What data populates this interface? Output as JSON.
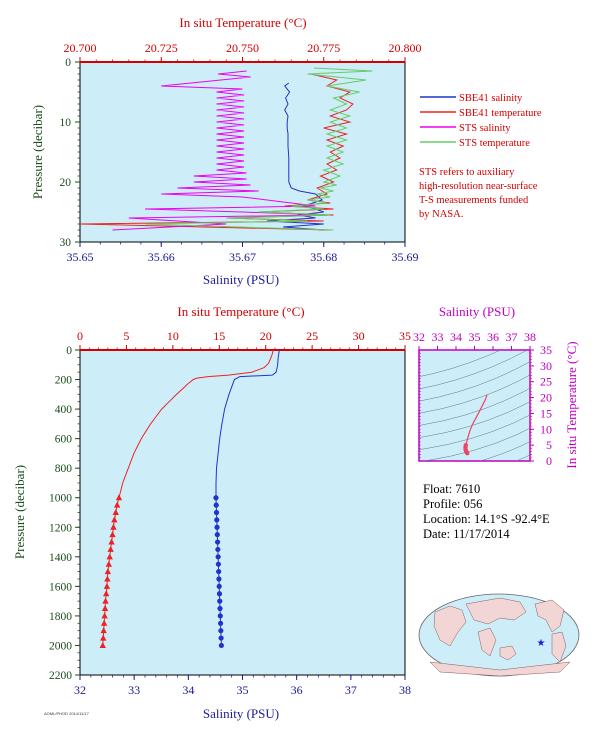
{
  "colors": {
    "plot_bg": "#cdeef8",
    "sbe_salinity": "#2233cc",
    "sbe_temperature": "#ee2222",
    "sts_salinity": "#ee00ee",
    "sts_temperature": "#66cc66",
    "ts_curve": "#ee4466",
    "axis_red": "#d40000",
    "axis_blue": "#1a1a9a",
    "axis_green": "#1a4d1a",
    "axis_magenta": "#c000c0"
  },
  "chart_data": [
    {
      "type": "line",
      "id": "surface_profile",
      "top_axis_label": "In situ Temperature (°C)",
      "top_ticks": [
        "20.700",
        "20.725",
        "20.750",
        "20.775",
        "20.800"
      ],
      "top_range": [
        20.7,
        20.8
      ],
      "bottom_axis_label": "Salinity (PSU)",
      "bottom_ticks": [
        "35.65",
        "35.66",
        "35.67",
        "35.68",
        "35.69"
      ],
      "bottom_range": [
        35.65,
        35.69
      ],
      "y_axis_label": "Pressure (decibar)",
      "y_ticks": [
        "0",
        "10",
        "20",
        "30"
      ],
      "y_range": [
        0,
        30
      ],
      "legend": [
        {
          "label": "SBE41 salinity",
          "color": "#2233cc"
        },
        {
          "label": "SBE41 temperature",
          "color": "#ee2222"
        },
        {
          "label": "STS salinity",
          "color": "#ee00ee"
        },
        {
          "label": "STS temperature",
          "color": "#66cc66"
        }
      ],
      "note": [
        "STS refers to auxiliary",
        "high-resolution near-surface",
        "T-S measurements funded",
        "by NASA."
      ],
      "series": [
        {
          "name": "SBE41 salinity",
          "axis": "bottom",
          "x": [
            35.6757,
            35.6752,
            35.6758,
            35.6753,
            35.6756,
            35.6752,
            35.6756,
            35.6755,
            35.6755,
            35.6756,
            35.6756,
            35.6757,
            35.6757,
            35.6757,
            35.6757,
            35.676,
            35.677,
            35.679,
            35.6798,
            35.6775,
            35.679,
            35.68,
            35.6768,
            35.679,
            35.673,
            35.68,
            35.675,
            35.68
          ],
          "y": [
            3.5,
            4,
            5,
            6,
            7,
            8,
            9,
            10,
            11,
            12,
            14,
            16,
            18,
            19,
            20,
            21,
            21.5,
            22,
            23,
            24,
            24.5,
            25,
            25.5,
            26,
            26.5,
            27,
            27.5,
            28
          ]
        },
        {
          "name": "SBE41 temperature",
          "axis": "top",
          "x": [
            20.771,
            20.779,
            20.776,
            20.783,
            20.78,
            20.784,
            20.782,
            20.777,
            20.783,
            20.775,
            20.782,
            20.776,
            20.781,
            20.777,
            20.78,
            20.776,
            20.779,
            20.774,
            20.778,
            20.773,
            20.776,
            20.77,
            20.777,
            20.763,
            20.778,
            20.755,
            20.778,
            20.745,
            20.775,
            20.7,
            20.777
          ],
          "y": [
            2,
            3,
            4,
            5,
            6,
            7,
            8,
            9,
            10,
            11,
            12,
            13,
            14,
            15,
            16,
            17,
            18,
            19,
            20,
            21,
            22,
            23,
            23.5,
            24,
            24.5,
            25,
            25.5,
            26,
            26.5,
            27,
            28
          ]
        },
        {
          "name": "STS salinity",
          "axis": "bottom",
          "x": [
            35.6705,
            35.667,
            35.671,
            35.66,
            35.67,
            35.6668,
            35.6702,
            35.6668,
            35.6702,
            35.6668,
            35.6702,
            35.6668,
            35.6702,
            35.6668,
            35.6702,
            35.6668,
            35.6702,
            35.6668,
            35.6702,
            35.6668,
            35.6702,
            35.6668,
            35.6702,
            35.6668,
            35.6702,
            35.6668,
            35.6702,
            35.6668,
            35.6702,
            35.6668,
            35.6702,
            35.6668,
            35.6705,
            35.664,
            35.6705,
            35.664,
            35.671,
            35.662,
            35.672,
            35.66,
            35.67,
            35.679,
            35.658,
            35.67,
            35.68,
            35.656,
            35.668,
            35.654
          ],
          "y": [
            1.5,
            2,
            2.5,
            4,
            4.5,
            5,
            5.5,
            6,
            6.5,
            7,
            7.5,
            8,
            8.5,
            9,
            9.5,
            10,
            10.5,
            11,
            11.5,
            12,
            12.5,
            13,
            13.5,
            14,
            14.5,
            15,
            15.5,
            16,
            16.5,
            17,
            17.5,
            18,
            18.5,
            19,
            19.5,
            20,
            20.5,
            21,
            21.5,
            22,
            22.5,
            24,
            24.5,
            25,
            25.5,
            26,
            27,
            28
          ]
        },
        {
          "name": "STS temperature",
          "axis": "top",
          "x": [
            20.772,
            20.79,
            20.77,
            20.788,
            20.776,
            20.786,
            20.778,
            20.782,
            20.777,
            20.783,
            20.777,
            20.782,
            20.776,
            20.782,
            20.776,
            20.781,
            20.776,
            20.781,
            20.775,
            20.78,
            20.775,
            20.779,
            20.774,
            20.778,
            20.773,
            20.777,
            20.77,
            20.776,
            20.765,
            20.775,
            20.755,
            20.777,
            20.745,
            20.77,
            20.72,
            20.778
          ],
          "y": [
            1,
            1.5,
            2,
            3,
            4,
            5,
            6,
            7,
            8,
            9,
            10,
            11,
            12,
            13,
            14,
            15,
            16,
            17,
            18,
            19,
            20,
            20.5,
            21,
            21.5,
            22,
            22.5,
            23,
            23.5,
            24,
            24.5,
            25,
            25.5,
            26,
            26.5,
            27,
            28
          ]
        }
      ]
    },
    {
      "type": "line",
      "id": "full_profile",
      "top_axis_label": "In situ Temperature (°C)",
      "top_ticks": [
        "0",
        "5",
        "10",
        "15",
        "20",
        "25",
        "30",
        "35"
      ],
      "top_range": [
        0,
        35
      ],
      "bottom_axis_label": "Salinity (PSU)",
      "bottom_ticks": [
        "32",
        "33",
        "34",
        "35",
        "36",
        "37",
        "38"
      ],
      "bottom_range": [
        32,
        38
      ],
      "y_axis_label": "Pressure (decibar)",
      "y_ticks": [
        "0",
        "200",
        "400",
        "600",
        "800",
        "1000",
        "1200",
        "1400",
        "1600",
        "1800",
        "2000",
        "2200"
      ],
      "y_range": [
        0,
        2200
      ],
      "series": [
        {
          "name": "SBE41 temperature",
          "axis": "top",
          "pressure": [
            0,
            30,
            60,
            90,
            120,
            150,
            170,
            180,
            190,
            200,
            230,
            260,
            300,
            350,
            400,
            450,
            500,
            550,
            600,
            650,
            700,
            750,
            800,
            850,
            900,
            950,
            1000,
            1050,
            1100,
            1150,
            1200,
            1250,
            1300,
            1350,
            1400,
            1450,
            1500,
            1550,
            1600,
            1650,
            1700,
            1750,
            1800,
            1850,
            1900,
            1950,
            2000
          ],
          "temperature": [
            20.8,
            20.7,
            20.5,
            20.3,
            19.8,
            18.5,
            16.0,
            13.8,
            12.6,
            12.2,
            11.6,
            11.1,
            10.4,
            9.6,
            8.8,
            8.2,
            7.6,
            7.1,
            6.6,
            6.2,
            5.8,
            5.5,
            5.2,
            4.9,
            4.6,
            4.4,
            4.2,
            4.0,
            3.85,
            3.7,
            3.6,
            3.5,
            3.4,
            3.3,
            3.2,
            3.1,
            3.0,
            2.95,
            2.9,
            2.82,
            2.75,
            2.7,
            2.65,
            2.6,
            2.55,
            2.5,
            2.45
          ],
          "marker_pressure": [
            1000,
            1050,
            1100,
            1150,
            1200,
            1250,
            1300,
            1350,
            1400,
            1450,
            1500,
            1550,
            1600,
            1650,
            1700,
            1750,
            1800,
            1850,
            1900,
            1950,
            2000
          ]
        },
        {
          "name": "SBE41 salinity",
          "axis": "bottom",
          "pressure": [
            0,
            50,
            100,
            150,
            170,
            180,
            200,
            250,
            300,
            400,
            500,
            600,
            700,
            800,
            900,
            1000,
            1100,
            1200,
            1300,
            1400,
            1500,
            1600,
            1700,
            1800,
            1900,
            2000
          ],
          "salinity": [
            35.68,
            35.66,
            35.65,
            35.62,
            35.55,
            34.95,
            34.85,
            34.8,
            34.75,
            34.67,
            34.62,
            34.58,
            34.55,
            34.52,
            34.51,
            34.51,
            34.52,
            34.53,
            34.54,
            34.55,
            34.56,
            34.57,
            34.58,
            34.59,
            34.6,
            34.61
          ],
          "marker_pressure": [
            1000,
            1050,
            1100,
            1150,
            1200,
            1250,
            1300,
            1350,
            1400,
            1450,
            1500,
            1550,
            1600,
            1650,
            1700,
            1750,
            1800,
            1850,
            1900,
            1950,
            2000
          ]
        }
      ]
    },
    {
      "type": "line",
      "id": "ts_diagram",
      "top_axis_label": "Salinity (PSU)",
      "top_ticks": [
        "32",
        "33",
        "34",
        "35",
        "36",
        "37",
        "38"
      ],
      "top_range": [
        32,
        38
      ],
      "right_axis_label": "In situ Temperature (°C)",
      "right_ticks": [
        "0",
        "5",
        "10",
        "15",
        "20",
        "25",
        "30",
        "35"
      ],
      "right_range": [
        0,
        35
      ],
      "series": [
        {
          "name": "T-S",
          "salinity": [
            35.67,
            35.6,
            35.3,
            34.95,
            34.85,
            34.75,
            34.65,
            34.58,
            34.53,
            34.51,
            34.52,
            34.55,
            34.58,
            34.61
          ],
          "temperature": [
            20.8,
            19.5,
            16.0,
            12.2,
            11.0,
            9.5,
            7.5,
            6.0,
            5.0,
            4.2,
            3.6,
            3.0,
            2.7,
            2.45
          ]
        }
      ]
    }
  ],
  "info": {
    "float": "Float: 7610",
    "profile": "Profile: 056",
    "location": "Location: 14.1°S -92.4°E",
    "date": "Date: 11/17/2014"
  },
  "footer_tag": "AOML/PHOD 2014/11/17"
}
